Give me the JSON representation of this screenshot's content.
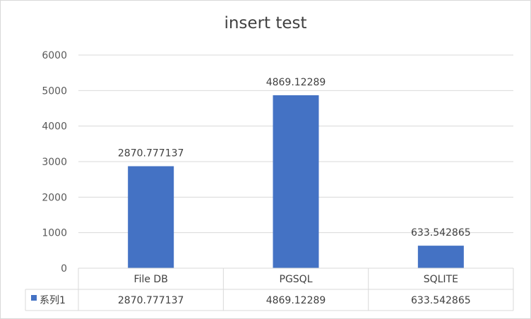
{
  "chart_data": {
    "type": "bar",
    "title": "insert test",
    "categories": [
      "File DB",
      "PGSQL",
      "SQLITE"
    ],
    "series": [
      {
        "name": "系列1",
        "values": [
          2870.777137,
          4869.12289,
          633.542865
        ],
        "value_labels": [
          "2870.777137",
          "4869.12289",
          "633.542865"
        ],
        "color": "#4472c4"
      }
    ],
    "yticks": [
      "0",
      "1000",
      "2000",
      "3000",
      "4000",
      "5000",
      "6000"
    ],
    "ylim": [
      0,
      6000
    ],
    "grid": true,
    "legend": "data-table"
  }
}
